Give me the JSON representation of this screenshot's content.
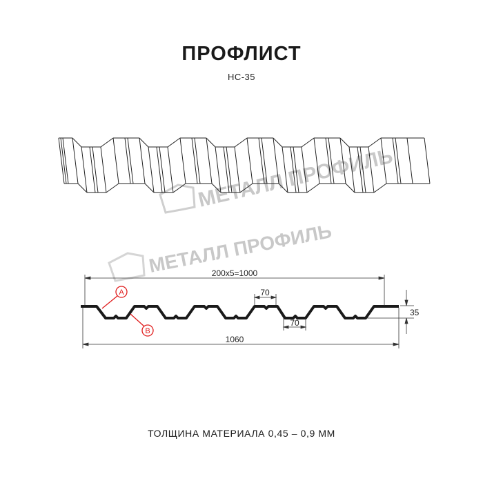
{
  "title": "ПРОФЛИСТ",
  "subtitle": "НС-35",
  "watermark": "МЕТАЛЛ ПРОФИЛЬ",
  "dimensions": {
    "pitch_total": "200x5=1000",
    "total_width": "1060",
    "height": "35",
    "top_crest": "70",
    "bottom_valley": "70"
  },
  "markers": {
    "a": "A",
    "b": "B"
  },
  "footer": "ТОЛЩИНА МАТЕРИАЛА 0,45 – 0,9 ММ",
  "colors": {
    "profile": "#1a1a1a",
    "marker": "#e01b1b",
    "watermark": "#c8c8c8"
  }
}
